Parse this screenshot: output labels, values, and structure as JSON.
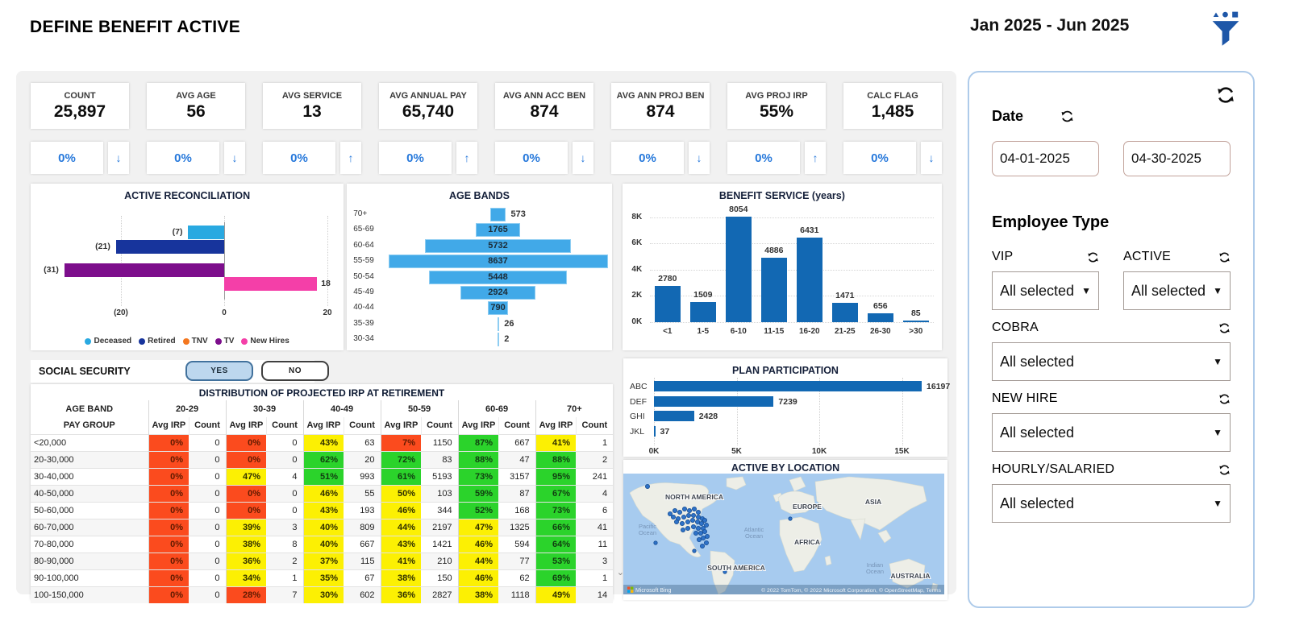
{
  "header": {
    "title": "DEFINE BENEFIT ACTIVE",
    "date_range": "Jan 2025 - Jun 2025"
  },
  "colors": {
    "accent_blue": "#2779db",
    "bar_blue": "#1268b3",
    "light_blue": "#41a9e8",
    "navy": "#17349c",
    "purple": "#7d0e8c",
    "pink": "#f43fa8",
    "orange": "#f4771f",
    "cell_red": "#fb4b1e",
    "cell_yellow": "#fcf003",
    "cell_green": "#2bd32b"
  },
  "kpis": [
    {
      "label": "COUNT",
      "value": "25,897",
      "change": "0%",
      "trend": "down"
    },
    {
      "label": "AVG AGE",
      "value": "56",
      "change": "0%",
      "trend": "down"
    },
    {
      "label": "AVG SERVICE",
      "value": "13",
      "change": "0%",
      "trend": "up"
    },
    {
      "label": "AVG ANNUAL PAY",
      "value": "65,740",
      "change": "0%",
      "trend": "up"
    },
    {
      "label": "AVG ANN ACC BEN",
      "value": "874",
      "change": "0%",
      "trend": "down"
    },
    {
      "label": "AVG ANN PROJ BEN",
      "value": "874",
      "change": "0%",
      "trend": "down"
    },
    {
      "label": "AVG PROJ IRP",
      "value": "55%",
      "change": "0%",
      "trend": "up"
    },
    {
      "label": "CALC FLAG",
      "value": "1,485",
      "change": "0%",
      "trend": "down"
    }
  ],
  "chart_data": [
    {
      "name": "active_reconciliation",
      "type": "bar",
      "orientation": "horizontal",
      "title": "ACTIVE RECONCILIATION",
      "series": [
        {
          "name": "Deceased",
          "value": -7,
          "label": "(7)",
          "color": "#29a9e1"
        },
        {
          "name": "Retired",
          "value": -21,
          "label": "(21)",
          "color": "#17349c"
        },
        {
          "name": "TNV",
          "value": 0,
          "label": "",
          "color": "#f4771f"
        },
        {
          "name": "TV",
          "value": -31,
          "label": "(31)",
          "color": "#7d0e8c"
        },
        {
          "name": "New Hires",
          "value": 18,
          "label": "18",
          "color": "#f43fa8"
        }
      ],
      "x_ticks": [
        {
          "label": "(20)",
          "value": -20
        },
        {
          "label": "0",
          "value": 0
        },
        {
          "label": "20",
          "value": 20
        }
      ],
      "xlim": [
        -33,
        22
      ]
    },
    {
      "name": "age_bands",
      "type": "bar",
      "orientation": "tornado",
      "title": "AGE BANDS",
      "categories": [
        "70+",
        "65-69",
        "60-64",
        "55-59",
        "50-54",
        "45-49",
        "40-44",
        "35-39",
        "30-34"
      ],
      "values": [
        573,
        1765,
        5732,
        8637,
        5448,
        2924,
        790,
        26,
        2
      ],
      "max": 8637
    },
    {
      "name": "benefit_service",
      "type": "bar",
      "orientation": "vertical",
      "title": "BENEFIT SERVICE (years)",
      "categories": [
        "<1",
        "1-5",
        "6-10",
        "11-15",
        "16-20",
        "21-25",
        "26-30",
        ">30"
      ],
      "values": [
        2780,
        1509,
        8054,
        4886,
        6431,
        1471,
        656,
        85
      ],
      "y_ticks": [
        "0K",
        "2K",
        "4K",
        "6K",
        "8K"
      ],
      "ylim": [
        0,
        8600
      ]
    },
    {
      "name": "plan_participation",
      "type": "bar",
      "orientation": "horizontal",
      "title": "PLAN PARTICIPATION",
      "categories": [
        "ABC",
        "DEF",
        "GHI",
        "JKL"
      ],
      "values": [
        16197,
        7239,
        2428,
        37
      ],
      "x_ticks": [
        "0K",
        "5K",
        "10K",
        "15K"
      ],
      "xlim": [
        0,
        17000
      ]
    }
  ],
  "social_security": {
    "label": "SOCIAL SECURITY",
    "options": [
      {
        "label": "YES",
        "selected": true
      },
      {
        "label": "NO",
        "selected": false
      }
    ]
  },
  "irp_table": {
    "title": "DISTRIBUTION OF PROJECTED IRP AT RETIREMENT",
    "row_header_top": "AGE BAND",
    "row_header_bottom": "PAY GROUP",
    "age_bands": [
      "20-29",
      "30-39",
      "40-49",
      "50-59",
      "60-69",
      "70+"
    ],
    "sub_headers": [
      "Avg IRP",
      "Count"
    ],
    "rows": [
      {
        "pay_group": "<20,000",
        "cells": [
          [
            "0%",
            "red",
            "0"
          ],
          [
            "0%",
            "red",
            "0"
          ],
          [
            "43%",
            "yellow",
            "63"
          ],
          [
            "7%",
            "red",
            "1150"
          ],
          [
            "87%",
            "green",
            "667"
          ],
          [
            "41%",
            "yellow",
            "1"
          ]
        ]
      },
      {
        "pay_group": "20-30,000",
        "cells": [
          [
            "0%",
            "red",
            "0"
          ],
          [
            "0%",
            "red",
            "0"
          ],
          [
            "62%",
            "green",
            "20"
          ],
          [
            "72%",
            "green",
            "83"
          ],
          [
            "88%",
            "green",
            "47"
          ],
          [
            "88%",
            "green",
            "2"
          ]
        ]
      },
      {
        "pay_group": "30-40,000",
        "cells": [
          [
            "0%",
            "red",
            "0"
          ],
          [
            "47%",
            "yellow",
            "4"
          ],
          [
            "51%",
            "green",
            "993"
          ],
          [
            "61%",
            "green",
            "5193"
          ],
          [
            "73%",
            "green",
            "3157"
          ],
          [
            "95%",
            "green",
            "241"
          ]
        ]
      },
      {
        "pay_group": "40-50,000",
        "cells": [
          [
            "0%",
            "red",
            "0"
          ],
          [
            "0%",
            "red",
            "0"
          ],
          [
            "46%",
            "yellow",
            "55"
          ],
          [
            "50%",
            "yellow",
            "103"
          ],
          [
            "59%",
            "green",
            "87"
          ],
          [
            "67%",
            "green",
            "4"
          ]
        ]
      },
      {
        "pay_group": "50-60,000",
        "cells": [
          [
            "0%",
            "red",
            "0"
          ],
          [
            "0%",
            "red",
            "0"
          ],
          [
            "43%",
            "yellow",
            "193"
          ],
          [
            "46%",
            "yellow",
            "344"
          ],
          [
            "52%",
            "green",
            "168"
          ],
          [
            "73%",
            "green",
            "6"
          ]
        ]
      },
      {
        "pay_group": "60-70,000",
        "cells": [
          [
            "0%",
            "red",
            "0"
          ],
          [
            "39%",
            "yellow",
            "3"
          ],
          [
            "40%",
            "yellow",
            "809"
          ],
          [
            "44%",
            "yellow",
            "2197"
          ],
          [
            "47%",
            "yellow",
            "1325"
          ],
          [
            "66%",
            "green",
            "41"
          ]
        ]
      },
      {
        "pay_group": "70-80,000",
        "cells": [
          [
            "0%",
            "red",
            "0"
          ],
          [
            "38%",
            "yellow",
            "8"
          ],
          [
            "40%",
            "yellow",
            "667"
          ],
          [
            "43%",
            "yellow",
            "1421"
          ],
          [
            "46%",
            "yellow",
            "594"
          ],
          [
            "64%",
            "green",
            "11"
          ]
        ]
      },
      {
        "pay_group": "80-90,000",
        "cells": [
          [
            "0%",
            "red",
            "0"
          ],
          [
            "36%",
            "yellow",
            "2"
          ],
          [
            "37%",
            "yellow",
            "115"
          ],
          [
            "41%",
            "yellow",
            "210"
          ],
          [
            "44%",
            "yellow",
            "77"
          ],
          [
            "53%",
            "green",
            "3"
          ]
        ]
      },
      {
        "pay_group": "90-100,000",
        "cells": [
          [
            "0%",
            "red",
            "0"
          ],
          [
            "34%",
            "yellow",
            "1"
          ],
          [
            "35%",
            "yellow",
            "67"
          ],
          [
            "38%",
            "yellow",
            "150"
          ],
          [
            "46%",
            "yellow",
            "62"
          ],
          [
            "69%",
            "green",
            "1"
          ]
        ]
      },
      {
        "pay_group": "100-150,000",
        "cells": [
          [
            "0%",
            "red",
            "0"
          ],
          [
            "28%",
            "red",
            "7"
          ],
          [
            "30%",
            "yellow",
            "602"
          ],
          [
            "36%",
            "yellow",
            "2827"
          ],
          [
            "38%",
            "yellow",
            "1118"
          ],
          [
            "49%",
            "yellow",
            "14"
          ]
        ]
      }
    ]
  },
  "map": {
    "title": "ACTIVE BY LOCATION",
    "region_labels": [
      "NORTH AMERICA",
      "EUROPE",
      "ASIA",
      "AFRICA",
      "SOUTH AMERICA",
      "AUSTRALIA"
    ],
    "ocean_labels": [
      "Pacific Ocean",
      "Atlantic Ocean",
      "Indian Ocean"
    ],
    "logo": "Microsoft Bing",
    "attribution": "© 2022 TomTom, © 2022 Microsoft Corporation, © OpenStreetMap, Terms"
  },
  "sidebar": {
    "date": {
      "label": "Date",
      "from": "04-01-2025",
      "to": "04-30-2025"
    },
    "employee_type_label": "Employee Type",
    "slicers": [
      {
        "label": "VIP",
        "value": "All selected"
      },
      {
        "label": "ACTIVE",
        "value": "All selected"
      },
      {
        "label": "COBRA",
        "value": "All selected"
      },
      {
        "label": "NEW HIRE",
        "value": "All selected"
      },
      {
        "label": "HOURLY/SALARIED",
        "value": "All selected"
      }
    ]
  }
}
